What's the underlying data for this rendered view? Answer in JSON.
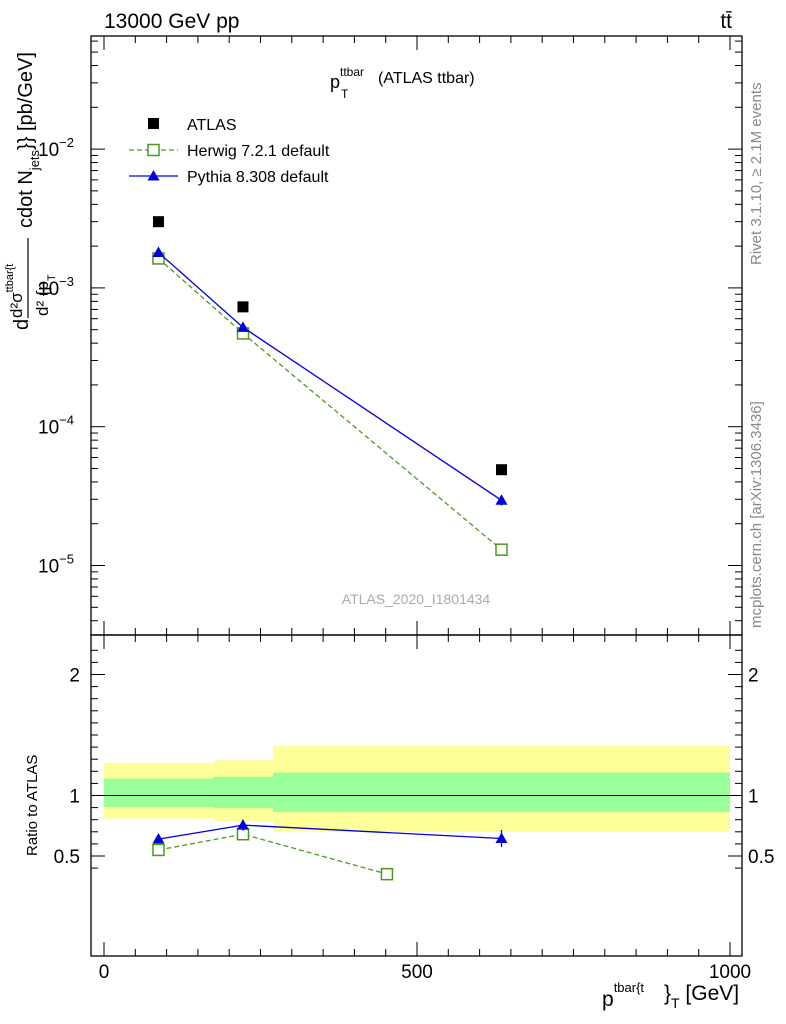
{
  "header": {
    "energy_label": "13000 GeV pp",
    "process_label": "tt̄"
  },
  "side_labels": {
    "rivet": "Rivet 3.1.10, ≥ 2.1M events",
    "source": "mcplots.cern.ch [arXiv:1306.3436]"
  },
  "colors": {
    "data": "#000000",
    "herwig": "#4a9a1e",
    "pythia": "#0000dd",
    "band_outer": "#ffff99",
    "band_inner": "#99ff99"
  },
  "chart_data": [
    {
      "type": "scatter",
      "title": "p_T^{ttbar} (ATLAS ttbar)",
      "title_main": "p",
      "title_sup": "ttbar",
      "title_sub": "T",
      "title_rest": " (ATLAS ttbar)",
      "ylabel": "d d²σ^{ttbar{t}}/d² {p_T cdot N_jets}} [pb/GeV]",
      "ylabel_parts": {
        "d": "d",
        "num": "d²σ",
        "num_sup": "ttbar{t",
        "den": "d² {p",
        "den_sub": "T",
        "rest": "cdot N",
        "rest_sub": "jets",
        "unit": "}} [pb/GeV]"
      },
      "yscale": "log",
      "ylim": [
        3e-06,
        0.09
      ],
      "xlim": [
        -20,
        1000
      ],
      "yticks": [
        {
          "value": 1e-05,
          "mant": "10",
          "exp": "−5"
        },
        {
          "value": 0.0001,
          "mant": "10",
          "exp": "−4"
        },
        {
          "value": 0.001,
          "mant": "10",
          "exp": "−3"
        },
        {
          "value": 0.01,
          "mant": "10",
          "exp": "−2"
        }
      ],
      "watermark": "ATLAS_2020_I1801434",
      "legend_position": "top-left",
      "series": [
        {
          "name": "ATLAS",
          "key": "data",
          "marker": "square-filled",
          "x": [
            87,
            222,
            635
          ],
          "y": [
            0.003,
            0.00073,
            4.9e-05
          ]
        },
        {
          "name": "Herwig 7.2.1 default",
          "key": "herwig",
          "marker": "square-open",
          "line": "dashed",
          "x": [
            87,
            222,
            635
          ],
          "y": [
            0.00163,
            0.00047,
            1.3e-05
          ],
          "yerr": [
            3e-05,
            1e-05,
            1.2e-06
          ]
        },
        {
          "name": "Pythia 8.308 default",
          "key": "pythia",
          "marker": "triangle-filled",
          "line": "solid",
          "x": [
            87,
            222,
            635
          ],
          "y": [
            0.0018,
            0.00052,
            2.95e-05
          ],
          "yerr": [
            3e-05,
            1e-05,
            2.5e-06
          ]
        }
      ]
    },
    {
      "type": "scatter",
      "ylabel": "Ratio to ATLAS",
      "xlabel": "p^{tbar{t}}_T [GeV]",
      "xlabel_parts": {
        "main": "p",
        "sup": "tbar{t",
        "sub": "T",
        "rest": " [GeV]"
      },
      "ylim": [
        0.35,
        2.3
      ],
      "xlim": [
        -20,
        1000
      ],
      "yticks": [
        {
          "value": 0.5,
          "label": "0.5"
        },
        {
          "value": 1,
          "label": "1"
        },
        {
          "value": 2,
          "label": "2"
        }
      ],
      "xticks": [
        {
          "value": 0,
          "label": "0"
        },
        {
          "value": 500,
          "label": "500"
        },
        {
          "value": 1000,
          "label": "1000"
        }
      ],
      "bands": [
        {
          "xmin": 0,
          "xmax": 175,
          "outer": [
            0.81,
            1.27
          ],
          "inner": [
            0.905,
            1.14
          ]
        },
        {
          "xmin": 175,
          "xmax": 270,
          "outer": [
            0.79,
            1.29
          ],
          "inner": [
            0.895,
            1.155
          ]
        },
        {
          "xmin": 270,
          "xmax": 1000,
          "outer": [
            0.7,
            1.41
          ],
          "inner": [
            0.865,
            1.19
          ]
        }
      ],
      "reference_line": 1,
      "series": [
        {
          "name": "Herwig 7.2.1 default",
          "key": "herwig",
          "marker": "square-open",
          "line": "dashed",
          "x": [
            87,
            222,
            452
          ],
          "y": [
            0.55,
            0.68,
            0.35
          ],
          "yerr": [
            0.012,
            0.03,
            0
          ]
        },
        {
          "name": "Pythia 8.308 default",
          "key": "pythia",
          "marker": "triangle-filled",
          "line": "solid",
          "x": [
            87,
            222,
            635
          ],
          "y": [
            0.64,
            0.755,
            0.645
          ],
          "yerr": [
            0.012,
            0.045,
            0.07
          ]
        }
      ]
    }
  ]
}
